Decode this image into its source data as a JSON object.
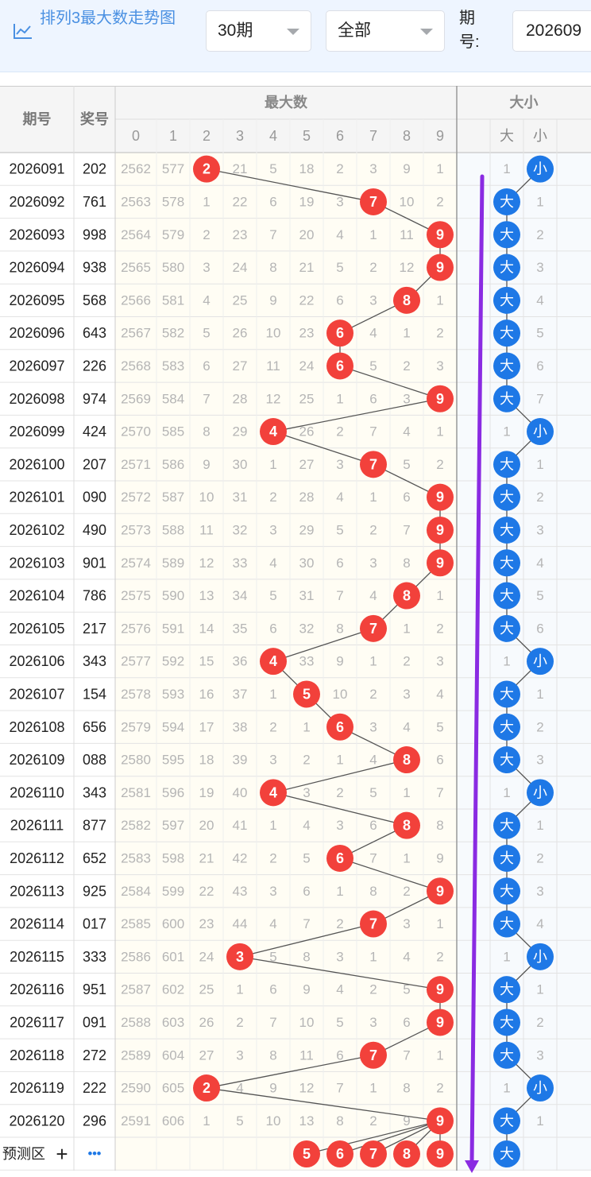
{
  "header": {
    "title": "排列3最大数走势图",
    "periods_select": "30期",
    "filter_select": "全部",
    "period_label": "期号:",
    "period_input": "202609"
  },
  "table": {
    "col_issue": "期号",
    "col_prize": "奖号",
    "group_max": "最大数",
    "group_size": "大小",
    "digits": [
      "0",
      "1",
      "2",
      "3",
      "4",
      "5",
      "6",
      "7",
      "8",
      "9"
    ],
    "size_labels": [
      "大",
      "小"
    ],
    "rows": [
      {
        "issue": "2026091",
        "prize": "202",
        "max": 2,
        "miss": [
          2562,
          577,
          0,
          21,
          5,
          18,
          2,
          3,
          9,
          1
        ],
        "size": "小",
        "size_miss": [
          1,
          0
        ]
      },
      {
        "issue": "2026092",
        "prize": "761",
        "max": 7,
        "miss": [
          2563,
          578,
          1,
          22,
          6,
          19,
          3,
          0,
          10,
          2
        ],
        "size": "大",
        "size_miss": [
          0,
          1
        ]
      },
      {
        "issue": "2026093",
        "prize": "998",
        "max": 9,
        "miss": [
          2564,
          579,
          2,
          23,
          7,
          20,
          4,
          1,
          11,
          0
        ],
        "size": "大",
        "size_miss": [
          0,
          2
        ]
      },
      {
        "issue": "2026094",
        "prize": "938",
        "max": 9,
        "miss": [
          2565,
          580,
          3,
          24,
          8,
          21,
          5,
          2,
          12,
          0
        ],
        "size": "大",
        "size_miss": [
          0,
          3
        ]
      },
      {
        "issue": "2026095",
        "prize": "568",
        "max": 8,
        "miss": [
          2566,
          581,
          4,
          25,
          9,
          22,
          6,
          3,
          0,
          1
        ],
        "size": "大",
        "size_miss": [
          0,
          4
        ]
      },
      {
        "issue": "2026096",
        "prize": "643",
        "max": 6,
        "miss": [
          2567,
          582,
          5,
          26,
          10,
          23,
          0,
          4,
          1,
          2
        ],
        "size": "大",
        "size_miss": [
          0,
          5
        ]
      },
      {
        "issue": "2026097",
        "prize": "226",
        "max": 6,
        "miss": [
          2568,
          583,
          6,
          27,
          11,
          24,
          0,
          5,
          2,
          3
        ],
        "size": "大",
        "size_miss": [
          0,
          6
        ]
      },
      {
        "issue": "2026098",
        "prize": "974",
        "max": 9,
        "miss": [
          2569,
          584,
          7,
          28,
          12,
          25,
          1,
          6,
          3,
          0
        ],
        "size": "大",
        "size_miss": [
          0,
          7
        ]
      },
      {
        "issue": "2026099",
        "prize": "424",
        "max": 4,
        "miss": [
          2570,
          585,
          8,
          29,
          0,
          26,
          2,
          7,
          4,
          1
        ],
        "size": "小",
        "size_miss": [
          1,
          0
        ]
      },
      {
        "issue": "2026100",
        "prize": "207",
        "max": 7,
        "miss": [
          2571,
          586,
          9,
          30,
          1,
          27,
          3,
          0,
          5,
          2
        ],
        "size": "大",
        "size_miss": [
          0,
          1
        ]
      },
      {
        "issue": "2026101",
        "prize": "090",
        "max": 9,
        "miss": [
          2572,
          587,
          10,
          31,
          2,
          28,
          4,
          1,
          6,
          0
        ],
        "size": "大",
        "size_miss": [
          0,
          2
        ]
      },
      {
        "issue": "2026102",
        "prize": "490",
        "max": 9,
        "miss": [
          2573,
          588,
          11,
          32,
          3,
          29,
          5,
          2,
          7,
          0
        ],
        "size": "大",
        "size_miss": [
          0,
          3
        ]
      },
      {
        "issue": "2026103",
        "prize": "901",
        "max": 9,
        "miss": [
          2574,
          589,
          12,
          33,
          4,
          30,
          6,
          3,
          8,
          0
        ],
        "size": "大",
        "size_miss": [
          0,
          4
        ]
      },
      {
        "issue": "2026104",
        "prize": "786",
        "max": 8,
        "miss": [
          2575,
          590,
          13,
          34,
          5,
          31,
          7,
          4,
          0,
          1
        ],
        "size": "大",
        "size_miss": [
          0,
          5
        ]
      },
      {
        "issue": "2026105",
        "prize": "217",
        "max": 7,
        "miss": [
          2576,
          591,
          14,
          35,
          6,
          32,
          8,
          0,
          1,
          2
        ],
        "size": "大",
        "size_miss": [
          0,
          6
        ]
      },
      {
        "issue": "2026106",
        "prize": "343",
        "max": 4,
        "miss": [
          2577,
          592,
          15,
          36,
          0,
          33,
          9,
          1,
          2,
          3
        ],
        "size": "小",
        "size_miss": [
          1,
          0
        ]
      },
      {
        "issue": "2026107",
        "prize": "154",
        "max": 5,
        "miss": [
          2578,
          593,
          16,
          37,
          1,
          0,
          10,
          2,
          3,
          4
        ],
        "size": "大",
        "size_miss": [
          0,
          1
        ]
      },
      {
        "issue": "2026108",
        "prize": "656",
        "max": 6,
        "miss": [
          2579,
          594,
          17,
          38,
          2,
          1,
          0,
          3,
          4,
          5
        ],
        "size": "大",
        "size_miss": [
          0,
          2
        ]
      },
      {
        "issue": "2026109",
        "prize": "088",
        "max": 8,
        "miss": [
          2580,
          595,
          18,
          39,
          3,
          2,
          1,
          4,
          0,
          6
        ],
        "size": "大",
        "size_miss": [
          0,
          3
        ]
      },
      {
        "issue": "2026110",
        "prize": "343",
        "max": 4,
        "miss": [
          2581,
          596,
          19,
          40,
          0,
          3,
          2,
          5,
          1,
          7
        ],
        "size": "小",
        "size_miss": [
          1,
          0
        ]
      },
      {
        "issue": "2026111",
        "prize": "877",
        "max": 8,
        "miss": [
          2582,
          597,
          20,
          41,
          1,
          4,
          3,
          6,
          0,
          8
        ],
        "size": "大",
        "size_miss": [
          0,
          1
        ]
      },
      {
        "issue": "2026112",
        "prize": "652",
        "max": 6,
        "miss": [
          2583,
          598,
          21,
          42,
          2,
          5,
          0,
          7,
          1,
          9
        ],
        "size": "大",
        "size_miss": [
          0,
          2
        ]
      },
      {
        "issue": "2026113",
        "prize": "925",
        "max": 9,
        "miss": [
          2584,
          599,
          22,
          43,
          3,
          6,
          1,
          8,
          2,
          0
        ],
        "size": "大",
        "size_miss": [
          0,
          3
        ]
      },
      {
        "issue": "2026114",
        "prize": "017",
        "max": 7,
        "miss": [
          2585,
          600,
          23,
          44,
          4,
          7,
          2,
          0,
          3,
          1
        ],
        "size": "大",
        "size_miss": [
          0,
          4
        ]
      },
      {
        "issue": "2026115",
        "prize": "333",
        "max": 3,
        "miss": [
          2586,
          601,
          24,
          0,
          5,
          8,
          3,
          1,
          4,
          2
        ],
        "size": "小",
        "size_miss": [
          1,
          0
        ]
      },
      {
        "issue": "2026116",
        "prize": "951",
        "max": 9,
        "miss": [
          2587,
          602,
          25,
          1,
          6,
          9,
          4,
          2,
          5,
          0
        ],
        "size": "大",
        "size_miss": [
          0,
          1
        ]
      },
      {
        "issue": "2026117",
        "prize": "091",
        "max": 9,
        "miss": [
          2588,
          603,
          26,
          2,
          7,
          10,
          5,
          3,
          6,
          0
        ],
        "size": "大",
        "size_miss": [
          0,
          2
        ]
      },
      {
        "issue": "2026118",
        "prize": "272",
        "max": 7,
        "miss": [
          2589,
          604,
          27,
          3,
          8,
          11,
          6,
          0,
          7,
          1
        ],
        "size": "大",
        "size_miss": [
          0,
          3
        ]
      },
      {
        "issue": "2026119",
        "prize": "222",
        "max": 2,
        "miss": [
          2590,
          605,
          0,
          4,
          9,
          12,
          7,
          1,
          8,
          2
        ],
        "size": "小",
        "size_miss": [
          1,
          0
        ]
      },
      {
        "issue": "2026120",
        "prize": "296",
        "max": 9,
        "miss": [
          2591,
          606,
          1,
          5,
          10,
          13,
          8,
          2,
          9,
          0
        ],
        "size": "大",
        "size_miss": [
          0,
          1
        ]
      }
    ],
    "predict": {
      "label": "预测区",
      "plus": "+",
      "more": "•••",
      "balls": [
        5,
        6,
        7,
        8,
        9
      ],
      "size": "大"
    }
  },
  "colors": {
    "red_ball": "#f2413b",
    "blue_ball": "#1e78e6",
    "trend_line": "#555555",
    "arrow": "#8a2be2",
    "header_bg": "#f5f5f5",
    "zone_max_bg": "#fffdf4",
    "zone_size_bg": "#f7fafd"
  }
}
